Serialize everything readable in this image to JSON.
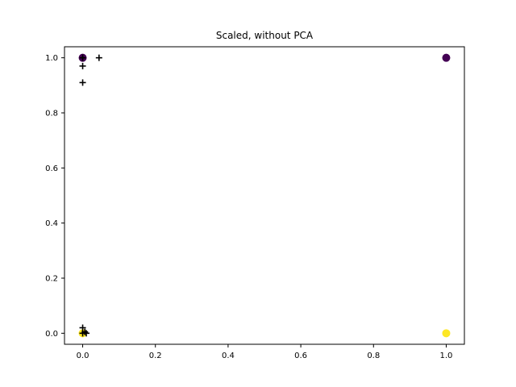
{
  "chart_data": {
    "type": "scatter",
    "title": "Scaled, without PCA",
    "xlabel": "",
    "ylabel": "",
    "xlim": [
      -0.05,
      1.05
    ],
    "ylim": [
      -0.04,
      1.04
    ],
    "xticks": [
      0.0,
      0.2,
      0.4,
      0.6,
      0.8,
      1.0
    ],
    "xtick_labels": [
      "0.0",
      "0.2",
      "0.4",
      "0.6",
      "0.8",
      "1.0"
    ],
    "yticks": [
      0.0,
      0.2,
      0.4,
      0.6,
      0.8,
      1.0
    ],
    "ytick_labels": [
      "0.0",
      "0.2",
      "0.4",
      "0.6",
      "0.8",
      "1.0"
    ],
    "grid": false,
    "colors": {
      "purple": "#440154",
      "yellow": "#fde725",
      "marker_plus": "#000000"
    },
    "series": [
      {
        "marker": "circle",
        "color": "#440154",
        "points": [
          [
            0.0,
            1.0
          ],
          [
            1.0,
            1.0
          ]
        ]
      },
      {
        "marker": "circle",
        "color": "#fde725",
        "points": [
          [
            0.0,
            0.0
          ],
          [
            1.0,
            0.0
          ]
        ]
      },
      {
        "marker": "plus",
        "color": "#000000",
        "points": [
          [
            0.0,
            1.0
          ],
          [
            0.045,
            1.0
          ],
          [
            0.0,
            0.97
          ],
          [
            0.0,
            0.91
          ],
          [
            0.0,
            0.0
          ],
          [
            0.0,
            0.02
          ],
          [
            0.006,
            0.005
          ],
          [
            0.01,
            0.0
          ]
        ]
      }
    ]
  }
}
